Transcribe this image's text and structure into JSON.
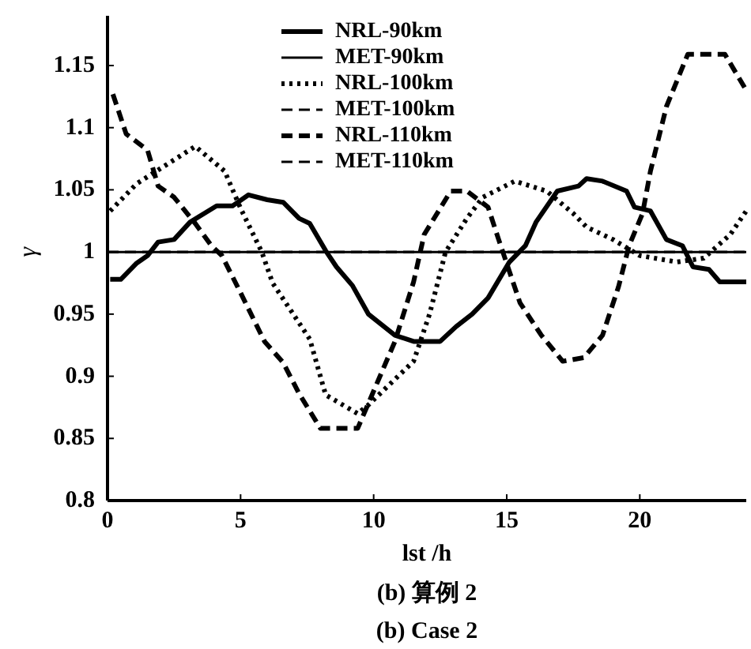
{
  "chart_data": {
    "type": "line",
    "xlabel": "lst /h",
    "ylabel": "γ",
    "annotations": [
      "(b) 算例 2",
      "(b) Case 2"
    ],
    "xlim": [
      0,
      24
    ],
    "xticks": [
      0,
      5,
      10,
      15,
      20
    ],
    "ylim": [
      0.8,
      1.19
    ],
    "yticks": [
      0.8,
      0.85,
      0.9,
      0.95,
      1,
      1.05,
      1.1,
      1.15
    ],
    "legend": "top",
    "series": [
      {
        "name": "NRL-90km",
        "color": "#000000",
        "line_style": "solid",
        "x": [
          0.1,
          0.5,
          1.1,
          1.5,
          1.9,
          2.5,
          3.1,
          4.1,
          4.7,
          5.3,
          6,
          6.6,
          7.2,
          7.6,
          8.2,
          8.6,
          9.2,
          9.8,
          10.8,
          11.5,
          12.5,
          13.1,
          13.7,
          14.3,
          15.1,
          15.7,
          16.1,
          16.9,
          17.7,
          18,
          18.6,
          19.5,
          19.8,
          20.4,
          21,
          21.6,
          22,
          22.6,
          23,
          24
        ],
        "values": [
          0.978,
          0.978,
          0.991,
          0.997,
          1.008,
          1.01,
          1.024,
          1.037,
          1.037,
          1.046,
          1.042,
          1.04,
          1.027,
          1.023,
          1.001,
          0.988,
          0.973,
          0.95,
          0.933,
          0.928,
          0.928,
          0.94,
          0.95,
          0.963,
          0.992,
          1.005,
          1.024,
          1.049,
          1.053,
          1.059,
          1.057,
          1.049,
          1.036,
          1.033,
          1.01,
          1.005,
          0.988,
          0.986,
          0.976,
          0.976
        ]
      },
      {
        "name": "MET-90km",
        "color": "#000000",
        "line_style": "solid",
        "x": [
          0,
          24
        ],
        "values": [
          1,
          1
        ]
      },
      {
        "name": "NRL-100km",
        "color": "#000000",
        "line_style": "dotted",
        "x": [
          0.1,
          1.1,
          3.3,
          4.4,
          5,
          5.8,
          6.2,
          7.6,
          8.2,
          9.4,
          9.8,
          11.5,
          12.1,
          12.7,
          13.5,
          14.1,
          15.3,
          16.5,
          17.5,
          18,
          19,
          20,
          21.4,
          22.4,
          23.4,
          24
        ],
        "values": [
          1.033,
          1.055,
          1.085,
          1.065,
          1.035,
          1,
          0.975,
          0.93,
          0.885,
          0.87,
          0.877,
          0.912,
          0.95,
          1,
          1.027,
          1.044,
          1.057,
          1.049,
          1.031,
          1.02,
          1.01,
          0.997,
          0.992,
          0.995,
          1.014,
          1.033
        ]
      },
      {
        "name": "MET-100km",
        "color": "#000000",
        "line_style": "dashed",
        "x": [
          0,
          24
        ],
        "values": [
          1,
          1
        ]
      },
      {
        "name": "NRL-110km",
        "color": "#000000",
        "line_style": "dashed",
        "x": [
          0.2,
          0.7,
          1.5,
          1.9,
          2.5,
          3.3,
          3.9,
          4.3,
          5,
          5.9,
          6.6,
          7.2,
          8,
          9.4,
          10.8,
          11.5,
          11.9,
          12.9,
          13.5,
          14.3,
          14.7,
          15.5,
          16.3,
          17.1,
          17.9,
          18.6,
          19.2,
          19.6,
          20.1,
          20.4,
          21,
          21.8,
          23.2,
          24
        ],
        "values": [
          1.127,
          1.095,
          1.082,
          1.053,
          1.044,
          1.023,
          1.005,
          0.997,
          0.967,
          0.928,
          0.911,
          0.886,
          0.858,
          0.858,
          0.928,
          0.976,
          1.014,
          1.049,
          1.049,
          1.036,
          1.01,
          0.959,
          0.933,
          0.912,
          0.915,
          0.933,
          0.972,
          1.005,
          1.031,
          1.065,
          1.117,
          1.159,
          1.159,
          1.13
        ]
      },
      {
        "name": "MET-110km",
        "color": "#000000",
        "line_style": "dashed",
        "x": [
          0,
          24
        ],
        "values": [
          1,
          1
        ]
      }
    ]
  }
}
